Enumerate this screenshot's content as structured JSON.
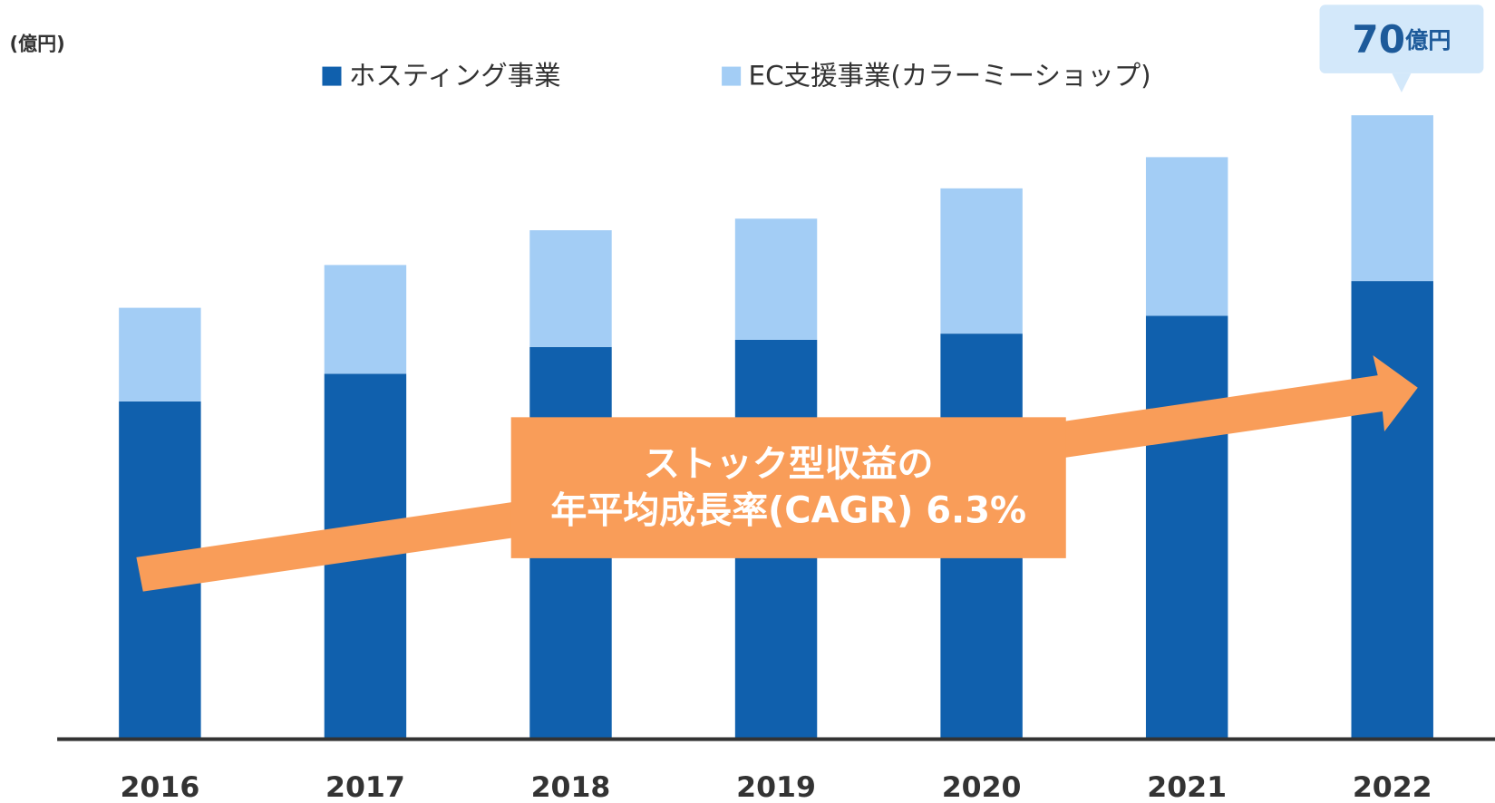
{
  "chart_data": {
    "type": "stacked-bar",
    "y_unit_label": "(億円)",
    "categories": [
      "2016",
      "2017",
      "2018",
      "2019",
      "2020",
      "2021",
      "2022"
    ],
    "series": [
      {
        "name": "ホスティング事業",
        "color": "#1060ad",
        "values": [
          37.9,
          41.0,
          44.0,
          44.8,
          45.5,
          47.5,
          51.4
        ]
      },
      {
        "name": "EC支援事業(カラーミーショップ)",
        "color": "#a3cdf5",
        "values": [
          10.5,
          12.2,
          13.1,
          13.6,
          16.3,
          17.8,
          18.6
        ]
      }
    ],
    "ylim": [
      0,
      70
    ],
    "callout": {
      "value": 70,
      "unit": "億円"
    },
    "annotation": [
      "ストック型収益の",
      "年平均成長率(CAGR) 6.3%"
    ],
    "annotation_color": "#f99d59"
  }
}
